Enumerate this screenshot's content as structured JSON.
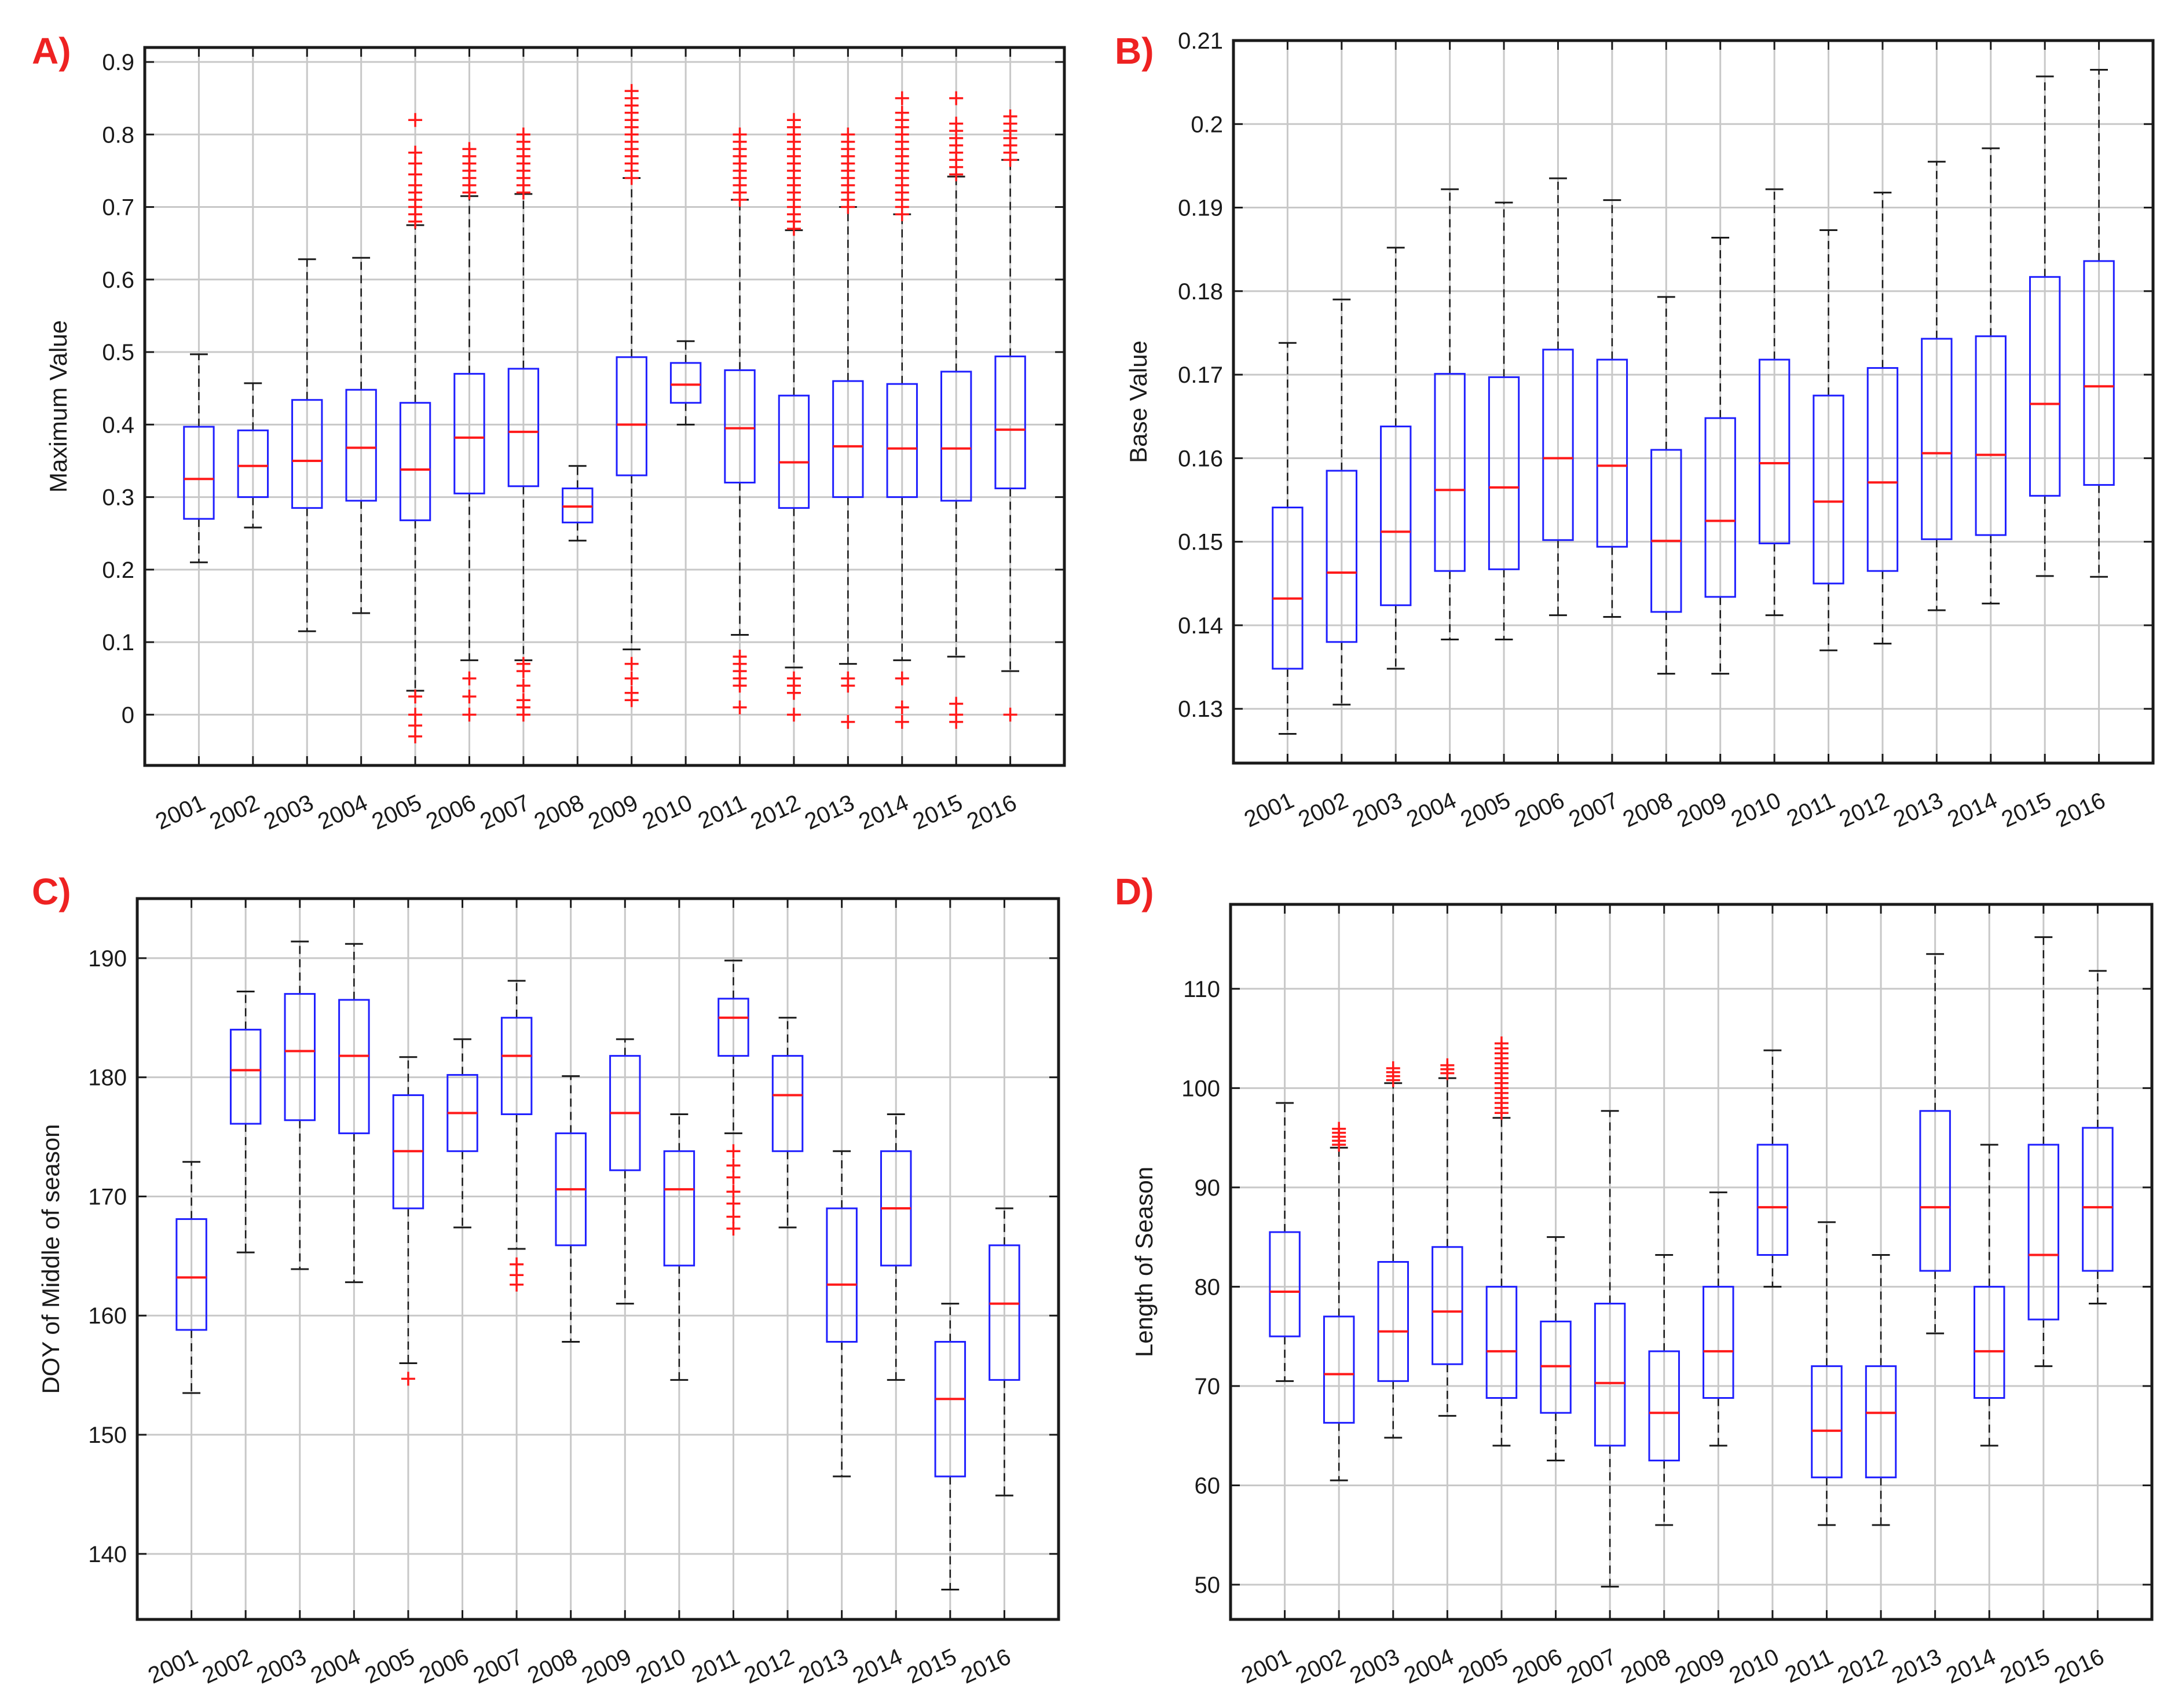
{
  "colors": {
    "box": "#1f1fff",
    "median": "#ff1a1a",
    "whisker": "#1a1a1a",
    "outlier": "#ff1a1a",
    "grid": "#c8c8c8",
    "axes": "#1a1a1a",
    "label": "#ee2222"
  },
  "chart_data": [
    {
      "panel": "A)",
      "type": "box",
      "ylabel": "Maximum Value",
      "categories": [
        "2001",
        "2002",
        "2003",
        "2004",
        "2005",
        "2006",
        "2007",
        "2008",
        "2009",
        "2010",
        "2011",
        "2012",
        "2013",
        "2014",
        "2015",
        "2016"
      ],
      "ylim": [
        -0.07,
        0.92
      ],
      "yticks": [
        0,
        0.1,
        0.2,
        0.3,
        0.4,
        0.5,
        0.6,
        0.7,
        0.8,
        0.9
      ],
      "ytick_labels": [
        "0",
        "0.1",
        "0.2",
        "0.3",
        "0.4",
        "0.5",
        "0.6",
        "0.7",
        "0.8",
        "0.9"
      ],
      "boxes": [
        {
          "whisker_low": 0.21,
          "q1": 0.27,
          "median": 0.325,
          "q3": 0.397,
          "whisker_high": 0.497,
          "outliers": []
        },
        {
          "whisker_low": 0.258,
          "q1": 0.3,
          "median": 0.343,
          "q3": 0.392,
          "whisker_high": 0.457,
          "outliers": []
        },
        {
          "whisker_low": 0.115,
          "q1": 0.285,
          "median": 0.35,
          "q3": 0.434,
          "whisker_high": 0.628,
          "outliers": []
        },
        {
          "whisker_low": 0.14,
          "q1": 0.295,
          "median": 0.368,
          "q3": 0.448,
          "whisker_high": 0.63,
          "outliers": []
        },
        {
          "whisker_low": 0.033,
          "q1": 0.268,
          "median": 0.338,
          "q3": 0.43,
          "whisker_high": 0.675,
          "outliers": [
            -0.03,
            -0.015,
            0.0,
            0.025,
            0.68,
            0.69,
            0.7,
            0.71,
            0.72,
            0.73,
            0.745,
            0.76,
            0.775,
            0.82
          ]
        },
        {
          "whisker_low": 0.075,
          "q1": 0.305,
          "median": 0.382,
          "q3": 0.47,
          "whisker_high": 0.715,
          "outliers": [
            0.0,
            0.025,
            0.05,
            0.72,
            0.73,
            0.74,
            0.75,
            0.76,
            0.77,
            0.78
          ]
        },
        {
          "whisker_low": 0.075,
          "q1": 0.315,
          "median": 0.39,
          "q3": 0.477,
          "whisker_high": 0.718,
          "outliers": [
            0.0,
            0.01,
            0.02,
            0.04,
            0.06,
            0.07,
            0.72,
            0.73,
            0.74,
            0.75,
            0.76,
            0.77,
            0.78,
            0.79,
            0.8
          ]
        },
        {
          "whisker_low": 0.24,
          "q1": 0.265,
          "median": 0.287,
          "q3": 0.312,
          "whisker_high": 0.343,
          "outliers": []
        },
        {
          "whisker_low": 0.09,
          "q1": 0.33,
          "median": 0.4,
          "q3": 0.493,
          "whisker_high": 0.74,
          "outliers": [
            0.02,
            0.03,
            0.05,
            0.07,
            0.74,
            0.75,
            0.76,
            0.77,
            0.78,
            0.79,
            0.8,
            0.81,
            0.82,
            0.83,
            0.84,
            0.85,
            0.86
          ]
        },
        {
          "whisker_low": 0.4,
          "q1": 0.43,
          "median": 0.455,
          "q3": 0.485,
          "whisker_high": 0.515,
          "outliers": []
        },
        {
          "whisker_low": 0.11,
          "q1": 0.32,
          "median": 0.395,
          "q3": 0.475,
          "whisker_high": 0.71,
          "outliers": [
            0.01,
            0.04,
            0.05,
            0.06,
            0.07,
            0.08,
            0.71,
            0.72,
            0.73,
            0.74,
            0.75,
            0.76,
            0.77,
            0.78,
            0.79,
            0.8
          ]
        },
        {
          "whisker_low": 0.065,
          "q1": 0.285,
          "median": 0.348,
          "q3": 0.44,
          "whisker_high": 0.668,
          "outliers": [
            0.0,
            0.03,
            0.04,
            0.05,
            0.67,
            0.68,
            0.69,
            0.7,
            0.71,
            0.72,
            0.73,
            0.74,
            0.75,
            0.76,
            0.77,
            0.78,
            0.79,
            0.8,
            0.81,
            0.82
          ]
        },
        {
          "whisker_low": 0.07,
          "q1": 0.3,
          "median": 0.37,
          "q3": 0.46,
          "whisker_high": 0.7,
          "outliers": [
            -0.01,
            0.04,
            0.05,
            0.7,
            0.71,
            0.72,
            0.73,
            0.74,
            0.75,
            0.76,
            0.77,
            0.78,
            0.79,
            0.8
          ]
        },
        {
          "whisker_low": 0.075,
          "q1": 0.3,
          "median": 0.367,
          "q3": 0.456,
          "whisker_high": 0.69,
          "outliers": [
            -0.01,
            0.01,
            0.05,
            0.69,
            0.7,
            0.71,
            0.72,
            0.73,
            0.74,
            0.75,
            0.76,
            0.77,
            0.78,
            0.79,
            0.8,
            0.81,
            0.82,
            0.83,
            0.85
          ]
        },
        {
          "whisker_low": 0.08,
          "q1": 0.295,
          "median": 0.367,
          "q3": 0.473,
          "whisker_high": 0.742,
          "outliers": [
            -0.01,
            0.0,
            0.015,
            0.745,
            0.755,
            0.765,
            0.775,
            0.785,
            0.795,
            0.805,
            0.815,
            0.85
          ]
        },
        {
          "whisker_low": 0.06,
          "q1": 0.312,
          "median": 0.393,
          "q3": 0.494,
          "whisker_high": 0.765,
          "outliers": [
            0.0,
            0.765,
            0.775,
            0.785,
            0.795,
            0.805,
            0.815,
            0.825
          ]
        }
      ]
    },
    {
      "panel": "B)",
      "type": "box",
      "ylabel": "Base Value",
      "categories": [
        "2001",
        "2002",
        "2003",
        "2004",
        "2005",
        "2006",
        "2007",
        "2008",
        "2009",
        "2010",
        "2011",
        "2012",
        "2013",
        "2014",
        "2015",
        "2016"
      ],
      "ylim": [
        0.1235,
        0.21
      ],
      "yticks": [
        0.13,
        0.14,
        0.15,
        0.16,
        0.17,
        0.18,
        0.19,
        0.2,
        0.21
      ],
      "ytick_labels": [
        "0.13",
        "0.14",
        "0.15",
        "0.16",
        "0.17",
        "0.18",
        "0.19",
        "0.2",
        "0.21"
      ],
      "boxes": [
        {
          "whisker_low": 0.127,
          "q1": 0.1348,
          "median": 0.1432,
          "q3": 0.1541,
          "whisker_high": 0.1738,
          "outliers": []
        },
        {
          "whisker_low": 0.1305,
          "q1": 0.138,
          "median": 0.1463,
          "q3": 0.1585,
          "whisker_high": 0.179,
          "outliers": []
        },
        {
          "whisker_low": 0.1348,
          "q1": 0.1424,
          "median": 0.1512,
          "q3": 0.1638,
          "whisker_high": 0.1852,
          "outliers": []
        },
        {
          "whisker_low": 0.1383,
          "q1": 0.1465,
          "median": 0.1562,
          "q3": 0.1701,
          "whisker_high": 0.1922,
          "outliers": []
        },
        {
          "whisker_low": 0.1383,
          "q1": 0.1467,
          "median": 0.1565,
          "q3": 0.1697,
          "whisker_high": 0.1906,
          "outliers": []
        },
        {
          "whisker_low": 0.1412,
          "q1": 0.1502,
          "median": 0.16,
          "q3": 0.173,
          "whisker_high": 0.1935,
          "outliers": []
        },
        {
          "whisker_low": 0.141,
          "q1": 0.1494,
          "median": 0.1591,
          "q3": 0.1718,
          "whisker_high": 0.1909,
          "outliers": []
        },
        {
          "whisker_low": 0.1342,
          "q1": 0.1416,
          "median": 0.1501,
          "q3": 0.161,
          "whisker_high": 0.1793,
          "outliers": []
        },
        {
          "whisker_low": 0.1342,
          "q1": 0.1434,
          "median": 0.1525,
          "q3": 0.1648,
          "whisker_high": 0.1864,
          "outliers": []
        },
        {
          "whisker_low": 0.1412,
          "q1": 0.1498,
          "median": 0.1594,
          "q3": 0.1718,
          "whisker_high": 0.1922,
          "outliers": []
        },
        {
          "whisker_low": 0.137,
          "q1": 0.145,
          "median": 0.1548,
          "q3": 0.1675,
          "whisker_high": 0.1873,
          "outliers": []
        },
        {
          "whisker_low": 0.1378,
          "q1": 0.1465,
          "median": 0.1571,
          "q3": 0.1708,
          "whisker_high": 0.1918,
          "outliers": []
        },
        {
          "whisker_low": 0.1418,
          "q1": 0.1503,
          "median": 0.1606,
          "q3": 0.1743,
          "whisker_high": 0.1955,
          "outliers": []
        },
        {
          "whisker_low": 0.1426,
          "q1": 0.1508,
          "median": 0.1604,
          "q3": 0.1746,
          "whisker_high": 0.1971,
          "outliers": []
        },
        {
          "whisker_low": 0.1459,
          "q1": 0.1555,
          "median": 0.1665,
          "q3": 0.1817,
          "whisker_high": 0.2057,
          "outliers": []
        },
        {
          "whisker_low": 0.1458,
          "q1": 0.1568,
          "median": 0.1686,
          "q3": 0.1836,
          "whisker_high": 0.2065,
          "outliers": []
        }
      ]
    },
    {
      "panel": "C)",
      "type": "box",
      "ylabel": "DOY of Middle of season",
      "categories": [
        "2001",
        "2002",
        "2003",
        "2004",
        "2005",
        "2006",
        "2007",
        "2008",
        "2009",
        "2010",
        "2011",
        "2012",
        "2013",
        "2014",
        "2015",
        "2016"
      ],
      "ylim": [
        134.5,
        195
      ],
      "yticks": [
        140,
        150,
        160,
        170,
        180,
        190
      ],
      "ytick_labels": [
        "140",
        "150",
        "160",
        "170",
        "180",
        "190"
      ],
      "boxes": [
        {
          "whisker_low": 153.5,
          "q1": 158.8,
          "median": 163.2,
          "q3": 168.1,
          "whisker_high": 172.9,
          "outliers": []
        },
        {
          "whisker_low": 165.3,
          "q1": 176.1,
          "median": 180.6,
          "q3": 184.0,
          "whisker_high": 187.2,
          "outliers": []
        },
        {
          "whisker_low": 163.9,
          "q1": 176.4,
          "median": 182.2,
          "q3": 187.0,
          "whisker_high": 191.4,
          "outliers": []
        },
        {
          "whisker_low": 162.8,
          "q1": 175.3,
          "median": 181.8,
          "q3": 186.5,
          "whisker_high": 191.2,
          "outliers": []
        },
        {
          "whisker_low": 156.0,
          "q1": 169.0,
          "median": 173.8,
          "q3": 178.5,
          "whisker_high": 181.7,
          "outliers": [
            154.7
          ]
        },
        {
          "whisker_low": 167.4,
          "q1": 173.8,
          "median": 177.0,
          "q3": 180.2,
          "whisker_high": 183.2,
          "outliers": []
        },
        {
          "whisker_low": 165.6,
          "q1": 176.9,
          "median": 181.8,
          "q3": 185.0,
          "whisker_high": 188.1,
          "outliers": [
            162.6,
            163.4,
            164.3
          ]
        },
        {
          "whisker_low": 157.8,
          "q1": 165.9,
          "median": 170.6,
          "q3": 175.3,
          "whisker_high": 180.1,
          "outliers": []
        },
        {
          "whisker_low": 161.0,
          "q1": 172.2,
          "median": 177.0,
          "q3": 181.8,
          "whisker_high": 183.2,
          "outliers": []
        },
        {
          "whisker_low": 154.6,
          "q1": 164.2,
          "median": 170.6,
          "q3": 173.8,
          "whisker_high": 176.9,
          "outliers": []
        },
        {
          "whisker_low": 175.3,
          "q1": 181.8,
          "median": 185.0,
          "q3": 186.6,
          "whisker_high": 189.8,
          "outliers": [
            167.3,
            168.3,
            169.4,
            170.4,
            171.6,
            172.6,
            173.8
          ]
        },
        {
          "whisker_low": 167.4,
          "q1": 173.8,
          "median": 178.5,
          "q3": 181.8,
          "whisker_high": 185.0,
          "outliers": []
        },
        {
          "whisker_low": 146.5,
          "q1": 157.8,
          "median": 162.6,
          "q3": 169.0,
          "whisker_high": 173.8,
          "outliers": []
        },
        {
          "whisker_low": 154.6,
          "q1": 164.2,
          "median": 169.0,
          "q3": 173.8,
          "whisker_high": 176.9,
          "outliers": []
        },
        {
          "whisker_low": 137.0,
          "q1": 146.5,
          "median": 153.0,
          "q3": 157.8,
          "whisker_high": 161.0,
          "outliers": []
        },
        {
          "whisker_low": 144.9,
          "q1": 154.6,
          "median": 161.0,
          "q3": 165.9,
          "whisker_high": 169.0,
          "outliers": []
        }
      ]
    },
    {
      "panel": "D)",
      "type": "box",
      "ylabel": "Length of Season",
      "categories": [
        "2001",
        "2002",
        "2003",
        "2004",
        "2005",
        "2006",
        "2007",
        "2008",
        "2009",
        "2010",
        "2011",
        "2012",
        "2013",
        "2014",
        "2015",
        "2016"
      ],
      "ylim": [
        46.5,
        118.5
      ],
      "yticks": [
        50,
        60,
        70,
        80,
        90,
        100,
        110
      ],
      "ytick_labels": [
        "50",
        "60",
        "70",
        "80",
        "90",
        "100",
        "110"
      ],
      "boxes": [
        {
          "whisker_low": 70.5,
          "q1": 75.0,
          "median": 79.5,
          "q3": 85.5,
          "whisker_high": 98.5,
          "outliers": []
        },
        {
          "whisker_low": 60.5,
          "q1": 66.3,
          "median": 71.2,
          "q3": 77.0,
          "whisker_high": 94.0,
          "outliers": [
            94.3,
            94.7,
            95.1,
            95.5,
            95.9
          ]
        },
        {
          "whisker_low": 64.8,
          "q1": 70.5,
          "median": 75.5,
          "q3": 82.5,
          "whisker_high": 100.5,
          "outliers": [
            100.8,
            101.2,
            101.6,
            102.0
          ]
        },
        {
          "whisker_low": 67.0,
          "q1": 72.2,
          "median": 77.5,
          "q3": 84.0,
          "whisker_high": 101.0,
          "outliers": [
            101.5,
            101.9,
            102.3
          ]
        },
        {
          "whisker_low": 64.0,
          "q1": 68.8,
          "median": 73.5,
          "q3": 80.0,
          "whisker_high": 97.0,
          "outliers": [
            97.5,
            98.0,
            98.5,
            99.0,
            99.5,
            100.0,
            100.5,
            101.0,
            101.5,
            102.0,
            102.5,
            103.0,
            103.5,
            104.0,
            104.5
          ]
        },
        {
          "whisker_low": 62.5,
          "q1": 67.3,
          "median": 72.0,
          "q3": 76.5,
          "whisker_high": 85.0,
          "outliers": []
        },
        {
          "whisker_low": 49.8,
          "q1": 64.0,
          "median": 70.3,
          "q3": 78.3,
          "whisker_high": 97.7,
          "outliers": []
        },
        {
          "whisker_low": 56.0,
          "q1": 62.5,
          "median": 67.3,
          "q3": 73.5,
          "whisker_high": 83.2,
          "outliers": []
        },
        {
          "whisker_low": 64.0,
          "q1": 68.8,
          "median": 73.5,
          "q3": 80.0,
          "whisker_high": 89.5,
          "outliers": []
        },
        {
          "whisker_low": 80.0,
          "q1": 83.2,
          "median": 88.0,
          "q3": 94.3,
          "whisker_high": 103.8,
          "outliers": []
        },
        {
          "whisker_low": 56.0,
          "q1": 60.8,
          "median": 65.5,
          "q3": 72.0,
          "whisker_high": 86.5,
          "outliers": []
        },
        {
          "whisker_low": 56.0,
          "q1": 60.8,
          "median": 67.3,
          "q3": 72.0,
          "whisker_high": 83.2,
          "outliers": []
        },
        {
          "whisker_low": 75.3,
          "q1": 81.6,
          "median": 88.0,
          "q3": 97.7,
          "whisker_high": 113.5,
          "outliers": []
        },
        {
          "whisker_low": 64.0,
          "q1": 68.8,
          "median": 73.5,
          "q3": 80.0,
          "whisker_high": 94.3,
          "outliers": []
        },
        {
          "whisker_low": 72.0,
          "q1": 76.7,
          "median": 83.2,
          "q3": 94.3,
          "whisker_high": 115.2,
          "outliers": []
        },
        {
          "whisker_low": 78.3,
          "q1": 81.6,
          "median": 88.0,
          "q3": 96.0,
          "whisker_high": 111.8,
          "outliers": []
        }
      ]
    }
  ]
}
